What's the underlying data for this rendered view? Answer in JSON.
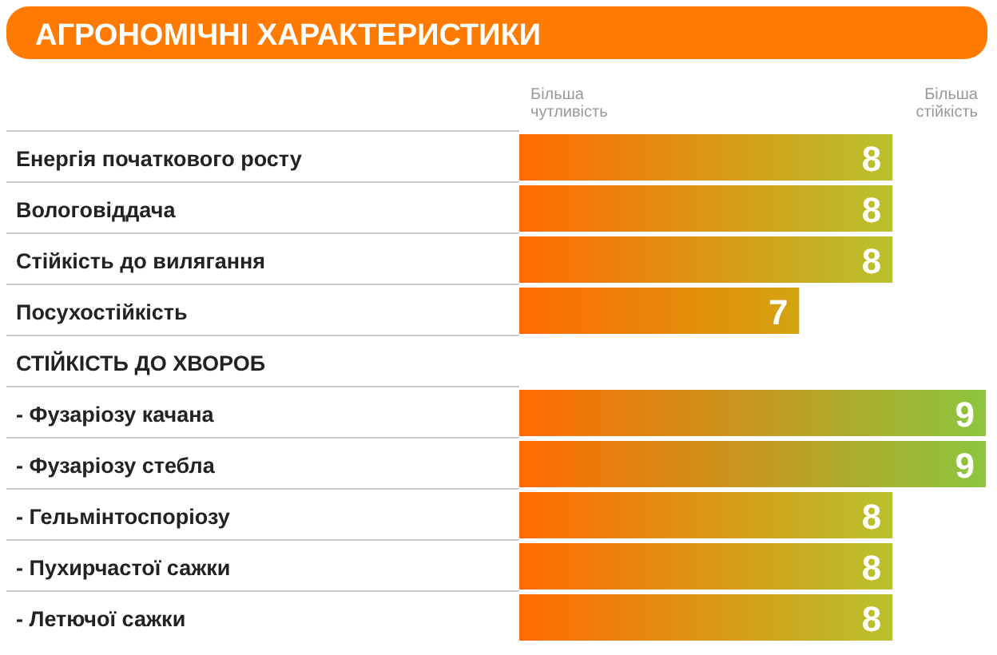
{
  "chart_data": {
    "type": "bar",
    "orientation": "horizontal",
    "title": "АГРОНОМІЧНІ ХАРАКТЕРИСТИКИ",
    "categories": [
      "Енергія початкового росту",
      "Вологовіддача",
      "Стійкість до вилягання",
      "Посухостійкість",
      "СТІЙКІСТЬ ДО ХВОРОБ",
      "- Фузаріозу качана",
      "- Фузаріозу стебла",
      "- Гельмінтоспоріозу",
      "- Пухирчастої сажки",
      "- Летючої сажки"
    ],
    "values": [
      8,
      8,
      8,
      7,
      null,
      9,
      9,
      8,
      8,
      8
    ],
    "colors": [
      "#b8c22c",
      "#b8c22c",
      "#b8c22c",
      "#d2a410",
      "#b8c22c",
      "#8cc63f",
      "#8cc63f",
      "#b8c22c",
      "#b8c22c",
      "#b8c22c"
    ],
    "xlim": [
      4,
      9
    ],
    "data_labels": true,
    "annotations": [
      "Більша чутливість",
      "Більша стійкість"
    ]
  }
}
